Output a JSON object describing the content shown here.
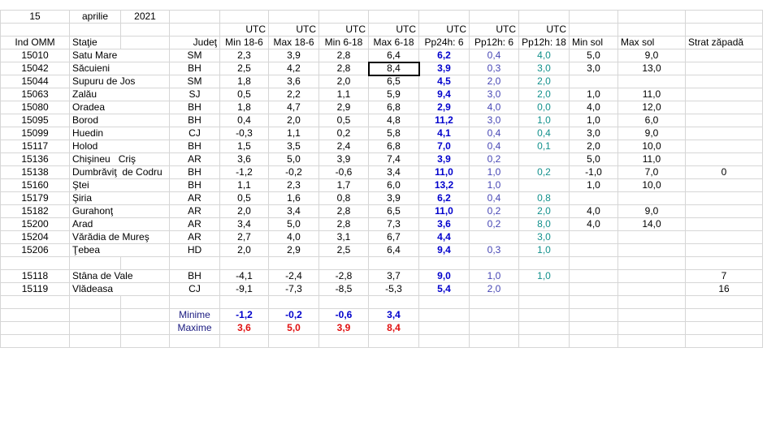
{
  "date": {
    "day": "15",
    "month": "aprilie",
    "year": "2021"
  },
  "utc": [
    "UTC",
    "UTC",
    "UTC",
    "UTC",
    "UTC",
    "UTC",
    "UTC"
  ],
  "headers": {
    "ind": "Ind OMM",
    "station": "Staţie",
    "county": "Judeţ",
    "min_18_6": "Min 18-6",
    "max_18_6": "Max 18-6",
    "min_6_18": "Min 6-18",
    "max_6_18": "Max 6-18",
    "pp24h_6": "Pp24h: 6",
    "pp12h_6": "Pp12h: 6",
    "pp12h_18": "Pp12h: 18",
    "min_sol": "Min sol",
    "max_sol": "Max sol",
    "snow": "Strat zăpadă"
  },
  "rows": [
    {
      "ind": "15010",
      "station": "Satu Mare",
      "county": "SM",
      "min_18_6": "2,3",
      "max_18_6": "3,9",
      "min_6_18": "2,8",
      "max_6_18": "6,4",
      "pp24h_6": "6,2",
      "pp12h_6": "0,4",
      "pp12h_18": "4,0",
      "min_sol": "5,0",
      "max_sol": "9,0"
    },
    {
      "ind": "15042",
      "station": "Săcuieni",
      "county": "BH",
      "min_18_6": "2,5",
      "max_18_6": "4,2",
      "min_6_18": "2,8",
      "max_6_18": "8,4",
      "pp24h_6": "3,9",
      "pp12h_6": "0,3",
      "pp12h_18": "3,0",
      "min_sol": "3,0",
      "max_sol": "13,0"
    },
    {
      "ind": "15044",
      "station": "Supuru de Jos",
      "county": "SM",
      "min_18_6": "1,8",
      "max_18_6": "3,6",
      "min_6_18": "2,0",
      "max_6_18": "6,5",
      "pp24h_6": "4,5",
      "pp12h_6": "2,0",
      "pp12h_18": "2,0"
    },
    {
      "ind": "15063",
      "station": "Zalău",
      "county": "SJ",
      "min_18_6": "0,5",
      "max_18_6": "2,2",
      "min_6_18": "1,1",
      "max_6_18": "5,9",
      "pp24h_6": "9,4",
      "pp12h_6": "3,0",
      "pp12h_18": "2,0",
      "min_sol": "1,0",
      "max_sol": "11,0"
    },
    {
      "ind": "15080",
      "station": "Oradea",
      "county": "BH",
      "min_18_6": "1,8",
      "max_18_6": "4,7",
      "min_6_18": "2,9",
      "max_6_18": "6,8",
      "pp24h_6": "2,9",
      "pp12h_6": "4,0",
      "pp12h_18": "0,0",
      "min_sol": "4,0",
      "max_sol": "12,0"
    },
    {
      "ind": "15095",
      "station": "Borod",
      "county": "BH",
      "min_18_6": "0,4",
      "max_18_6": "2,0",
      "min_6_18": "0,5",
      "max_6_18": "4,8",
      "pp24h_6": "11,2",
      "pp12h_6": "3,0",
      "pp12h_18": "1,0",
      "min_sol": "1,0",
      "max_sol": "6,0"
    },
    {
      "ind": "15099",
      "station": "Huedin",
      "county": "CJ",
      "min_18_6": "-0,3",
      "max_18_6": "1,1",
      "min_6_18": "0,2",
      "max_6_18": "5,8",
      "pp24h_6": "4,1",
      "pp12h_6": "0,4",
      "pp12h_18": "0,4",
      "min_sol": "3,0",
      "max_sol": "9,0"
    },
    {
      "ind": "15117",
      "station": "Holod",
      "county": "BH",
      "min_18_6": "1,5",
      "max_18_6": "3,5",
      "min_6_18": "2,4",
      "max_6_18": "6,8",
      "pp24h_6": "7,0",
      "pp12h_6": "0,4",
      "pp12h_18": "0,1",
      "min_sol": "2,0",
      "max_sol": "10,0"
    },
    {
      "ind": "15136",
      "station": "Chişineu   Criş",
      "county": "AR",
      "min_18_6": "3,6",
      "max_18_6": "5,0",
      "min_6_18": "3,9",
      "max_6_18": "7,4",
      "pp24h_6": "3,9",
      "pp12h_6": "0,2",
      "min_sol": "5,0",
      "max_sol": "11,0"
    },
    {
      "ind": "15138",
      "station": "Dumbrăviţ  de Codru",
      "county": "BH",
      "min_18_6": "-1,2",
      "max_18_6": "-0,2",
      "min_6_18": "-0,6",
      "max_6_18": "3,4",
      "pp24h_6": "11,0",
      "pp12h_6": "1,0",
      "pp12h_18": "0,2",
      "min_sol": "-1,0",
      "max_sol": "7,0",
      "snow": "0"
    },
    {
      "ind": "15160",
      "station": "Ştei",
      "county": "BH",
      "min_18_6": "1,1",
      "max_18_6": "2,3",
      "min_6_18": "1,7",
      "max_6_18": "6,0",
      "pp24h_6": "13,2",
      "pp12h_6": "1,0",
      "min_sol": "1,0",
      "max_sol": "10,0"
    },
    {
      "ind": "15179",
      "station": "Şiria",
      "county": "AR",
      "min_18_6": "0,5",
      "max_18_6": "1,6",
      "min_6_18": "0,8",
      "max_6_18": "3,9",
      "pp24h_6": "6,2",
      "pp12h_6": "0,4",
      "pp12h_18": "0,8"
    },
    {
      "ind": "15182",
      "station": "Gurahonţ",
      "county": "AR",
      "min_18_6": "2,0",
      "max_18_6": "3,4",
      "min_6_18": "2,8",
      "max_6_18": "6,5",
      "pp24h_6": "11,0",
      "pp12h_6": "0,2",
      "pp12h_18": "2,0",
      "min_sol": "4,0",
      "max_sol": "9,0"
    },
    {
      "ind": "15200",
      "station": "Arad",
      "county": "AR",
      "min_18_6": "3,4",
      "max_18_6": "5,0",
      "min_6_18": "2,8",
      "max_6_18": "7,3",
      "pp24h_6": "3,6",
      "pp12h_6": "0,2",
      "pp12h_18": "8,0",
      "min_sol": "4,0",
      "max_sol": "14,0"
    },
    {
      "ind": "15204",
      "station": "Vărădia de Mureş",
      "county": "AR",
      "min_18_6": "2,7",
      "max_18_6": "4,0",
      "min_6_18": "3,1",
      "max_6_18": "6,7",
      "pp24h_6": "4,4",
      "pp12h_18": "3,0"
    },
    {
      "ind": "15206",
      "station": "Ţebea",
      "county": "HD",
      "min_18_6": "2,0",
      "max_18_6": "2,9",
      "min_6_18": "2,5",
      "max_6_18": "6,4",
      "pp24h_6": "9,4",
      "pp12h_6": "0,3",
      "pp12h_18": "1,0"
    }
  ],
  "mountain_rows": [
    {
      "ind": "15118",
      "station": "Stâna de Vale",
      "county": "BH",
      "min_18_6": "-4,1",
      "max_18_6": "-2,4",
      "min_6_18": "-2,8",
      "max_6_18": "3,7",
      "pp24h_6": "9,0",
      "pp12h_6": "1,0",
      "pp12h_18": "1,0",
      "snow": "7"
    },
    {
      "ind": "15119",
      "station": "Vlădeasa",
      "county": "CJ",
      "min_18_6": "-9,1",
      "max_18_6": "-7,3",
      "min_6_18": "-8,5",
      "max_6_18": "-5,3",
      "pp24h_6": "5,4",
      "pp12h_6": "2,0",
      "snow": "16"
    }
  ],
  "extremes": [
    {
      "label": "Minime",
      "min_18_6": "-1,2",
      "max_18_6": "-0,2",
      "min_6_18": "-0,6",
      "max_6_18": "3,4"
    },
    {
      "label": "Maxime",
      "min_18_6": "3,6",
      "max_18_6": "5,0",
      "min_6_18": "3,9",
      "max_6_18": "8,4"
    }
  ]
}
